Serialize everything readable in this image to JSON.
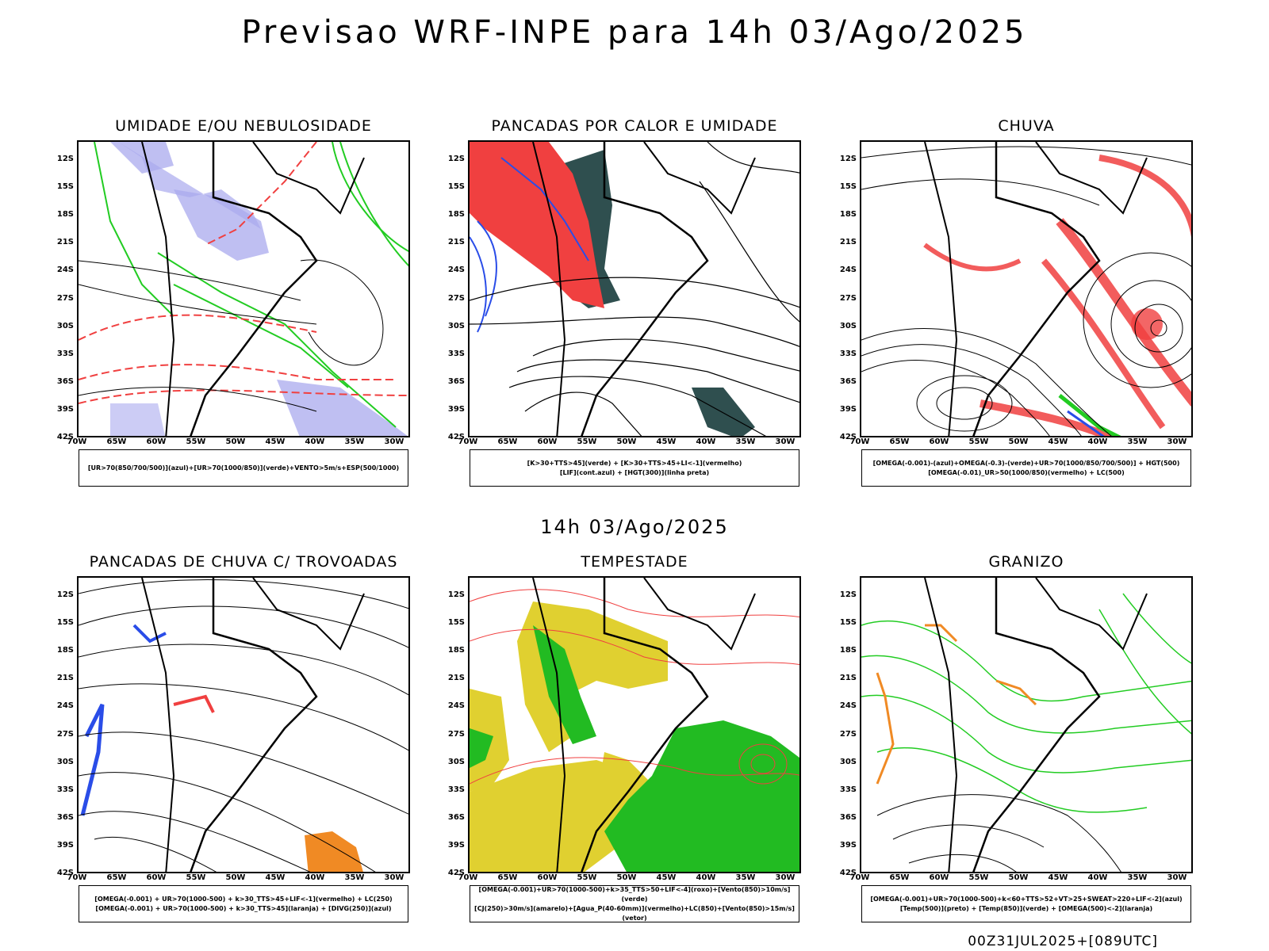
{
  "title": "Previsao WRF-INPE  para 14h 03/Ago/2025",
  "mid_time": "14h 03/Ago/2025",
  "footer": "00Z31JUL2025+[089UTC]",
  "axes": {
    "lat": [
      "12S",
      "15S",
      "18S",
      "21S",
      "24S",
      "27S",
      "30S",
      "33S",
      "36S",
      "39S",
      "42S"
    ],
    "lon": [
      "70W",
      "65W",
      "60W",
      "55W",
      "50W",
      "45W",
      "40W",
      "35W",
      "30W"
    ]
  },
  "colors": {
    "blue_light": "#aaaaee",
    "blue": "#2a4de8",
    "green": "#22cc22",
    "red": "#f04040",
    "dark_teal": "#2f4f4f",
    "yellow": "#e0d030",
    "orange": "#f08a24",
    "magenta": "#d020c0"
  },
  "panels": [
    {
      "title": "UMIDADE E/OU NEBULOSIDADE",
      "legend": [
        "[UR>70(850/700/500)](azul)+[UR>70(1000/850)](verde)+VENTO>5m/s+ESP(500/1000)"
      ]
    },
    {
      "title": "PANCADAS POR CALOR E UMIDADE",
      "legend": [
        "[K>30+TTS>45](verde) + [K>30+TTS>45+LI<-1](vermelho)",
        "[LIF](cont.azul) + [HGT(300)](linha preta)"
      ]
    },
    {
      "title": "CHUVA",
      "legend": [
        "[OMEGA(-0.001)-(azul)+OMEGA(-0.3)-(verde)+UR>70(1000/850/700/500)] + HGT(500)",
        "[OMEGA(-0.01)_UR>50(1000/850)(vermelho) + LC(500)"
      ]
    },
    {
      "title": "PANCADAS DE CHUVA C/ TROVOADAS",
      "legend": [
        "[OMEGA(-0.001) + UR>70(1000-500) + k>30_TTS>45+LIF<-1](vermelho) + LC(250)",
        "[OMEGA(-0.001) + UR>70(1000-500) + k>30_TTS>45](laranja) + [DIVG(250)](azul)"
      ]
    },
    {
      "title": "TEMPESTADE",
      "legend": [
        "[OMEGA(-0.001)+UR>70(1000-500)+k>35_TTS>50+LIF<-4](roxo)+[Vento(850)>10m/s](verde)",
        "[CJ(250)>30m/s](amarelo)+[Agua_P(40-60mm)](vermelho)+LC(850)+[Vento(850)>15m/s](vetor)"
      ]
    },
    {
      "title": "GRANIZO",
      "legend": [
        "[OMEGA(-0.001)+UR>70(1000-500)+k<60+TTS>52+VT>25+SWEAT>220+LIF<-2](azul)",
        "[Temp(500)](preto) + [Temp(850)](verde) + [OMEGA(500)<-2](laranja)"
      ]
    }
  ]
}
